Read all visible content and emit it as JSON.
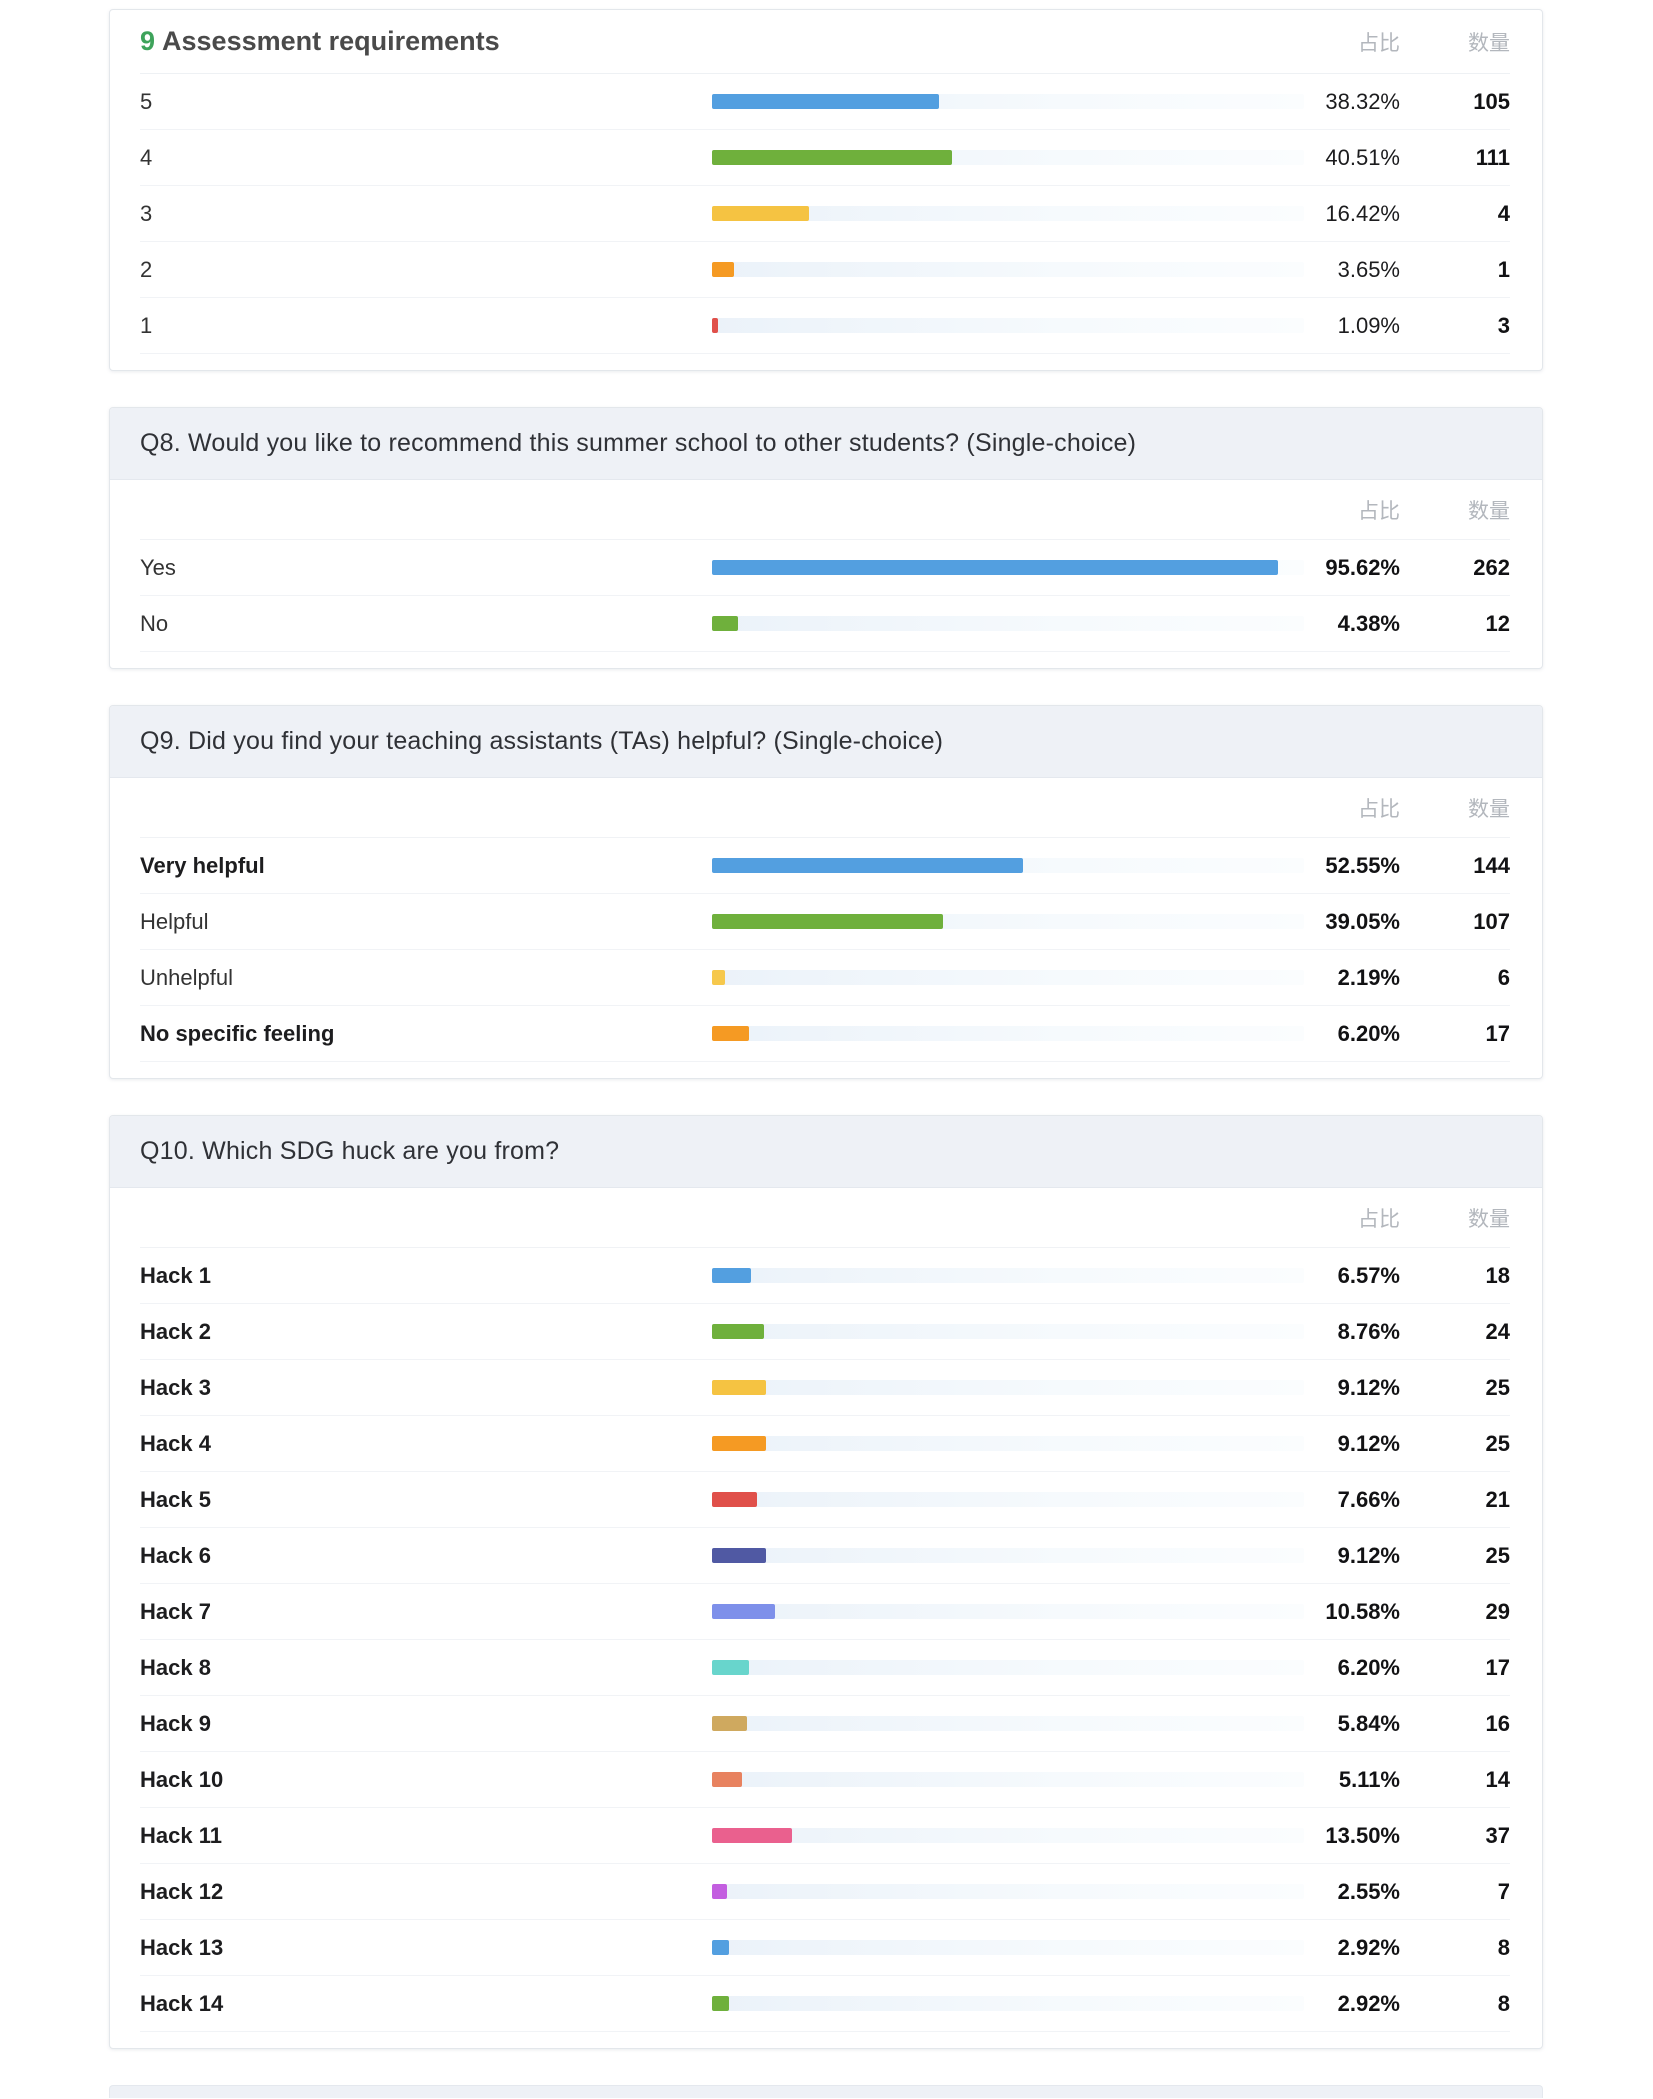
{
  "columns": {
    "ratio": "占比",
    "count": "数量"
  },
  "sections": [
    {
      "id": "assessment-requirements",
      "variant": "inline",
      "title_prefix": "9",
      "title_prefix_color": "#3ea35b",
      "title": "Assessment requirements",
      "pct_bold": false,
      "rows": [
        {
          "label": "5",
          "value": 38.32,
          "pct": "38.32%",
          "count": "105",
          "color": "#539fe0",
          "bold": false
        },
        {
          "label": "4",
          "value": 40.51,
          "pct": "40.51%",
          "count": "111",
          "color": "#6fb03c",
          "bold": false
        },
        {
          "label": "3",
          "value": 16.42,
          "pct": "16.42%",
          "count": "4",
          "color": "#f5c342",
          "bold": false
        },
        {
          "label": "2",
          "value": 3.65,
          "pct": "3.65%",
          "count": "1",
          "color": "#f59a23",
          "bold": false
        },
        {
          "label": "1",
          "value": 1.09,
          "pct": "1.09%",
          "count": "3",
          "color": "#e0504a",
          "bold": false
        }
      ]
    },
    {
      "id": "q8",
      "variant": "strip",
      "title": "Q8. Would you like to recommend this summer school to other students? (Single-choice)",
      "pct_bold": true,
      "rows": [
        {
          "label": "Yes",
          "value": 95.62,
          "pct": "95.62%",
          "count": "262",
          "color": "#539fe0",
          "bold": false
        },
        {
          "label": "No",
          "value": 4.38,
          "pct": "4.38%",
          "count": "12",
          "color": "#6fb03c",
          "bold": false
        }
      ]
    },
    {
      "id": "q9",
      "variant": "strip",
      "title": "Q9. Did you find your teaching assistants (TAs) helpful? (Single-choice)",
      "pct_bold": true,
      "rows": [
        {
          "label": "Very helpful",
          "value": 52.55,
          "pct": "52.55%",
          "count": "144",
          "color": "#539fe0",
          "bold": true
        },
        {
          "label": "Helpful",
          "value": 39.05,
          "pct": "39.05%",
          "count": "107",
          "color": "#6fb03c",
          "bold": false
        },
        {
          "label": "Unhelpful",
          "value": 2.19,
          "pct": "2.19%",
          "count": "6",
          "color": "#f6c84c",
          "bold": false
        },
        {
          "label": "No specific feeling",
          "value": 6.2,
          "pct": "6.20%",
          "count": "17",
          "color": "#f59a23",
          "bold": true
        }
      ]
    },
    {
      "id": "q10",
      "variant": "strip",
      "title": "Q10. Which SDG huck are you from?",
      "pct_bold": true,
      "rows": [
        {
          "label": "Hack 1",
          "value": 6.57,
          "pct": "6.57%",
          "count": "18",
          "color": "#539fe0",
          "bold": true
        },
        {
          "label": "Hack 2",
          "value": 8.76,
          "pct": "8.76%",
          "count": "24",
          "color": "#6fb03c",
          "bold": true
        },
        {
          "label": "Hack 3",
          "value": 9.12,
          "pct": "9.12%",
          "count": "25",
          "color": "#f5c342",
          "bold": true
        },
        {
          "label": "Hack 4",
          "value": 9.12,
          "pct": "9.12%",
          "count": "25",
          "color": "#f59a23",
          "bold": true
        },
        {
          "label": "Hack 5",
          "value": 7.66,
          "pct": "7.66%",
          "count": "21",
          "color": "#e0504a",
          "bold": true
        },
        {
          "label": "Hack 6",
          "value": 9.12,
          "pct": "9.12%",
          "count": "25",
          "color": "#5059a3",
          "bold": true
        },
        {
          "label": "Hack 7",
          "value": 10.58,
          "pct": "10.58%",
          "count": "29",
          "color": "#7e90ea",
          "bold": true
        },
        {
          "label": "Hack 8",
          "value": 6.2,
          "pct": "6.20%",
          "count": "17",
          "color": "#68d5cc",
          "bold": true
        },
        {
          "label": "Hack 9",
          "value": 5.84,
          "pct": "5.84%",
          "count": "16",
          "color": "#cfa95f",
          "bold": true
        },
        {
          "label": "Hack 10",
          "value": 5.11,
          "pct": "5.11%",
          "count": "14",
          "color": "#e8825f",
          "bold": true
        },
        {
          "label": "Hack 11",
          "value": 13.5,
          "pct": "13.50%",
          "count": "37",
          "color": "#ea608e",
          "bold": true
        },
        {
          "label": "Hack 12",
          "value": 2.55,
          "pct": "2.55%",
          "count": "7",
          "color": "#c35ee0",
          "bold": true
        },
        {
          "label": "Hack 13",
          "value": 2.92,
          "pct": "2.92%",
          "count": "8",
          "color": "#539fe0",
          "bold": true
        },
        {
          "label": "Hack 14",
          "value": 2.92,
          "pct": "2.92%",
          "count": "8",
          "color": "#6fb03c",
          "bold": true
        }
      ]
    }
  ],
  "chart_data": [
    {
      "type": "bar",
      "orientation": "horizontal",
      "title": "9 Assessment requirements",
      "columns": [
        "占比",
        "数量"
      ],
      "categories": [
        "5",
        "4",
        "3",
        "2",
        "1"
      ],
      "values": [
        38.32,
        40.51,
        16.42,
        3.65,
        1.09
      ],
      "counts": [
        105,
        111,
        4,
        1,
        3
      ],
      "value_format": "percent",
      "xlim": [
        0,
        100
      ],
      "grid": false,
      "legend": false
    },
    {
      "type": "bar",
      "orientation": "horizontal",
      "title": "Q8. Would you like to recommend this summer school to other students? (Single-choice)",
      "columns": [
        "占比",
        "数量"
      ],
      "categories": [
        "Yes",
        "No"
      ],
      "values": [
        95.62,
        4.38
      ],
      "counts": [
        262,
        12
      ],
      "value_format": "percent",
      "xlim": [
        0,
        100
      ],
      "grid": false,
      "legend": false
    },
    {
      "type": "bar",
      "orientation": "horizontal",
      "title": "Q9. Did you find your teaching assistants (TAs) helpful? (Single-choice)",
      "columns": [
        "占比",
        "数量"
      ],
      "categories": [
        "Very helpful",
        "Helpful",
        "Unhelpful",
        "No specific feeling"
      ],
      "values": [
        52.55,
        39.05,
        2.19,
        6.2
      ],
      "counts": [
        144,
        107,
        6,
        17
      ],
      "value_format": "percent",
      "xlim": [
        0,
        100
      ],
      "grid": false,
      "legend": false
    },
    {
      "type": "bar",
      "orientation": "horizontal",
      "title": "Q10. Which SDG huck are you from?",
      "columns": [
        "占比",
        "数量"
      ],
      "categories": [
        "Hack 1",
        "Hack 2",
        "Hack 3",
        "Hack 4",
        "Hack 5",
        "Hack 6",
        "Hack 7",
        "Hack 8",
        "Hack 9",
        "Hack 10",
        "Hack 11",
        "Hack 12",
        "Hack 13",
        "Hack 14"
      ],
      "values": [
        6.57,
        8.76,
        9.12,
        9.12,
        7.66,
        9.12,
        10.58,
        6.2,
        5.84,
        5.11,
        13.5,
        2.55,
        2.92,
        2.92
      ],
      "counts": [
        18,
        24,
        25,
        25,
        21,
        25,
        29,
        17,
        16,
        14,
        37,
        7,
        8,
        8
      ],
      "value_format": "percent",
      "xlim": [
        0,
        100
      ],
      "grid": false,
      "legend": false
    }
  ]
}
